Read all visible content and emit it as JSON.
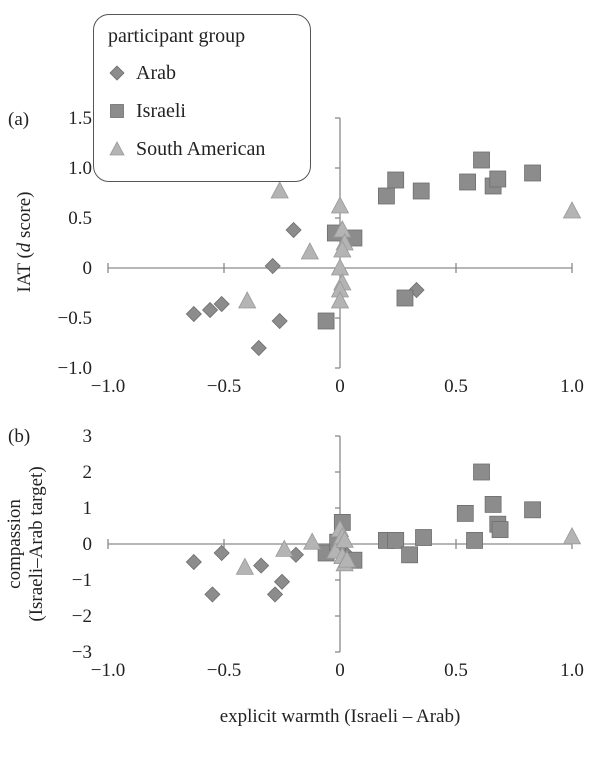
{
  "chart_data": [
    {
      "type": "scatter",
      "panel_label": "(a)",
      "title": "",
      "xlabel": "",
      "ylabel": "IAT (d score)",
      "xlim": [
        -1.0,
        1.0
      ],
      "ylim": [
        -1.0,
        1.5
      ],
      "xticks": [
        "−1.0",
        "−0.5",
        "0",
        "0.5",
        "1.0"
      ],
      "yticks": [
        "1.5",
        "1.0",
        "0.5",
        "0",
        "−0.5",
        "−1.0"
      ],
      "legend": {
        "title": "participant group",
        "placement": "top-left"
      },
      "series": [
        {
          "name": "Arab",
          "marker": "diamond",
          "color": "#8c8c8c",
          "points": [
            [
              -0.63,
              -0.46
            ],
            [
              -0.56,
              -0.42
            ],
            [
              -0.51,
              -0.36
            ],
            [
              -0.35,
              -0.8
            ],
            [
              -0.29,
              0.02
            ],
            [
              -0.26,
              -0.53
            ],
            [
              -0.2,
              0.38
            ],
            [
              0.33,
              -0.22
            ]
          ]
        },
        {
          "name": "Israeli",
          "marker": "square",
          "color": "#8c8c8c",
          "points": [
            [
              -0.06,
              -0.53
            ],
            [
              0.2,
              0.72
            ],
            [
              0.24,
              0.88
            ],
            [
              0.35,
              0.77
            ],
            [
              0.28,
              -0.3
            ],
            [
              0.55,
              0.86
            ],
            [
              0.61,
              1.08
            ],
            [
              0.66,
              0.82
            ],
            [
              0.68,
              0.89
            ],
            [
              0.83,
              0.95
            ],
            [
              0.06,
              0.3
            ],
            [
              -0.02,
              0.35
            ]
          ]
        },
        {
          "name": "South American",
          "marker": "triangle",
          "color": "#b4b4b4",
          "points": [
            [
              -0.26,
              0.77
            ],
            [
              -0.4,
              -0.33
            ],
            [
              -0.13,
              0.16
            ],
            [
              0.0,
              0.62
            ],
            [
              0.01,
              0.38
            ],
            [
              0.02,
              0.25
            ],
            [
              0.01,
              0.18
            ],
            [
              0.0,
              0.0
            ],
            [
              0.01,
              -0.15
            ],
            [
              0.0,
              -0.22
            ],
            [
              0.0,
              -0.33
            ],
            [
              1.0,
              0.57
            ]
          ]
        }
      ]
    },
    {
      "type": "scatter",
      "panel_label": "(b)",
      "title": "",
      "xlabel": "explicit warmth (Israeli – Arab)",
      "ylabel": "compassion (Israeli–Arab target)",
      "ylabel_lines": [
        "compassion",
        "(Israeli–Arab target)"
      ],
      "xlim": [
        -1.0,
        1.0
      ],
      "ylim": [
        -3,
        3
      ],
      "xticks": [
        "−1.0",
        "−0.5",
        "0",
        "0.5",
        "1.0"
      ],
      "yticks": [
        "3",
        "2",
        "1",
        "0",
        "−1",
        "−2",
        "−3"
      ],
      "series": [
        {
          "name": "Arab",
          "marker": "diamond",
          "color": "#8c8c8c",
          "points": [
            [
              -0.63,
              -0.5
            ],
            [
              -0.55,
              -1.4
            ],
            [
              -0.51,
              -0.25
            ],
            [
              -0.34,
              -0.6
            ],
            [
              -0.28,
              -1.4
            ],
            [
              -0.25,
              -1.05
            ],
            [
              -0.19,
              -0.3
            ],
            [
              0.03,
              -0.3
            ]
          ]
        },
        {
          "name": "Israeli",
          "marker": "square",
          "color": "#8c8c8c",
          "points": [
            [
              -0.06,
              -0.25
            ],
            [
              0.01,
              0.6
            ],
            [
              0.06,
              -0.45
            ],
            [
              0.2,
              0.1
            ],
            [
              0.24,
              0.1
            ],
            [
              0.3,
              -0.3
            ],
            [
              0.36,
              0.18
            ],
            [
              0.54,
              0.85
            ],
            [
              0.58,
              0.1
            ],
            [
              0.61,
              2.0
            ],
            [
              0.66,
              1.1
            ],
            [
              0.68,
              0.55
            ],
            [
              0.69,
              0.4
            ],
            [
              0.83,
              0.95
            ],
            [
              -0.01,
              0.05
            ]
          ]
        },
        {
          "name": "South American",
          "marker": "triangle",
          "color": "#b4b4b4",
          "points": [
            [
              -0.41,
              -0.65
            ],
            [
              -0.24,
              -0.15
            ],
            [
              -0.12,
              0.05
            ],
            [
              -0.02,
              -0.2
            ],
            [
              0.0,
              0.4
            ],
            [
              0.01,
              0.2
            ],
            [
              0.02,
              0.1
            ],
            [
              0.01,
              -0.35
            ],
            [
              0.02,
              -0.55
            ],
            [
              0.03,
              -0.45
            ],
            [
              1.0,
              0.2
            ]
          ]
        }
      ]
    }
  ]
}
